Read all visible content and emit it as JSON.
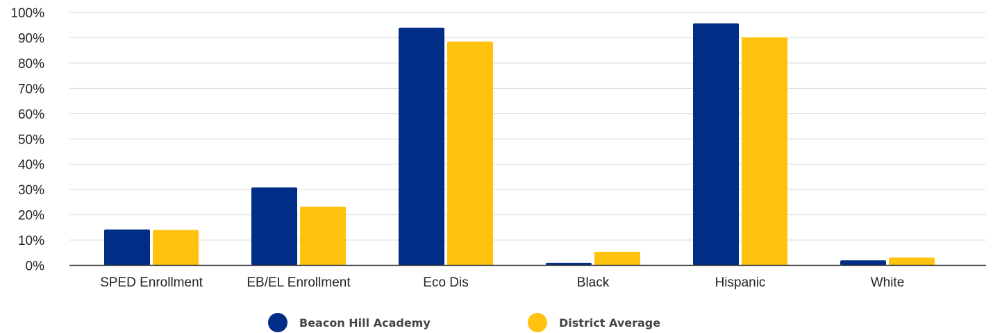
{
  "chart_data": {
    "type": "bar",
    "categories": [
      "SPED Enrollment",
      "EB/EL Enrollment",
      "Eco Dis",
      "Black",
      "Hispanic",
      "White"
    ],
    "series": [
      {
        "name": "Beacon Hill Academy",
        "color": "#002D85",
        "values": [
          14.2,
          30.8,
          94.0,
          1.0,
          95.7,
          2.0
        ]
      },
      {
        "name": "District Average",
        "color": "#FFC20E",
        "values": [
          14.0,
          23.2,
          88.5,
          5.4,
          90.2,
          3.1
        ]
      }
    ],
    "yticks": [
      "0%",
      "10%",
      "20%",
      "30%",
      "40%",
      "50%",
      "60%",
      "70%",
      "80%",
      "90%",
      "100%"
    ],
    "ylim": [
      0,
      100
    ],
    "grid": true,
    "legend_position": "bottom",
    "title": "",
    "xlabel": "",
    "ylabel": ""
  }
}
